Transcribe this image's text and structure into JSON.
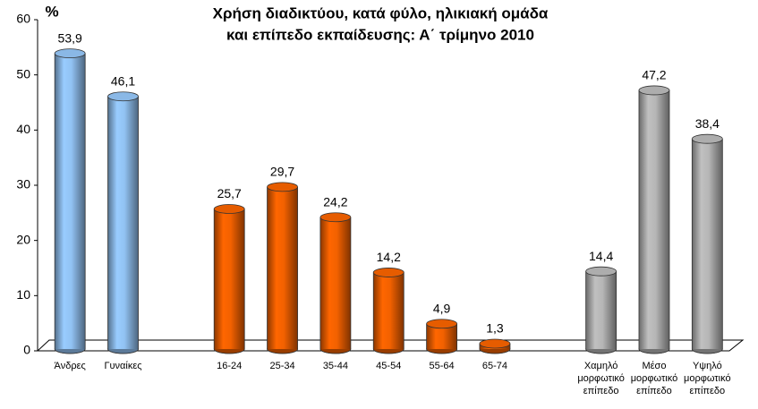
{
  "chart_data": {
    "type": "bar",
    "title": [
      "Χρήση διαδικτύου, κατά φύλο, ηλικιακή ομάδα",
      "και επίπεδο εκπαίδευσης: Α΄ τρίμηνο 2010"
    ],
    "y_label": "%",
    "categories": [
      "Άνδρες",
      "Γυναίκες",
      null,
      "16-24",
      "25-34",
      "35-44",
      "45-54",
      "55-64",
      "65-74",
      null,
      "Χαμηλό μορφωτικό επίπεδο",
      "Μέσο μορφωτικό επίπεδο",
      "Υψηλό μορφωτικό επίπεδο"
    ],
    "values": [
      53.9,
      46.1,
      null,
      25.7,
      29.7,
      24.2,
      14.2,
      4.9,
      1.3,
      null,
      14.4,
      47.2,
      38.4
    ],
    "value_labels": [
      "53,9",
      "46,1",
      null,
      "25,7",
      "29,7",
      "24,2",
      "14,2",
      "4,9",
      "1,3",
      null,
      "14,4",
      "47,2",
      "38,4"
    ],
    "colors": [
      "#99ccff",
      "#99ccff",
      null,
      "#ff6600",
      "#ff6600",
      "#ff6600",
      "#ff6600",
      "#ff6600",
      "#ff6600",
      null,
      "#c0c0c0",
      "#c0c0c0",
      "#c0c0c0"
    ],
    "ylim": [
      0,
      60
    ],
    "yticks": [
      0,
      10,
      20,
      30,
      40,
      50,
      60
    ],
    "grid": false
  }
}
